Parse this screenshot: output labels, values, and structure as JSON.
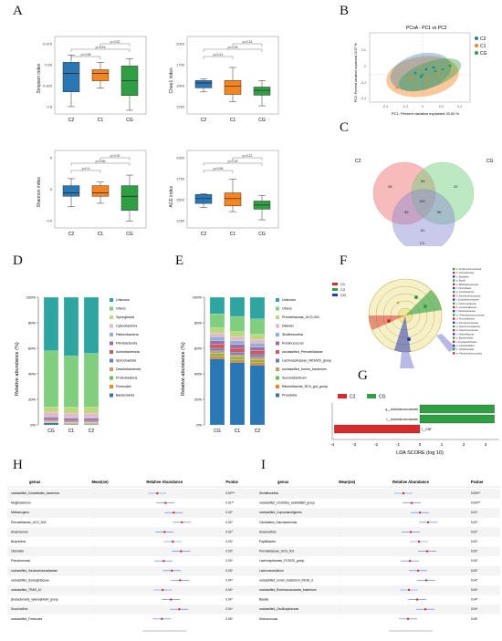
{
  "panel_labels": {
    "A": "A",
    "B": "B",
    "C": "C",
    "D": "D",
    "E": "E",
    "F": "F",
    "G": "G",
    "H": "H",
    "I": "I"
  },
  "colors": {
    "C2": "#2a77b5",
    "C1": "#f5861f",
    "CG": "#2ea043",
    "venn_C2": "#ef6b6b",
    "venn_CG": "#6ecf7a",
    "venn_C1": "#8a8ad6"
  },
  "panelA": {
    "groups": [
      "C2",
      "C1",
      "CG"
    ],
    "plots": [
      {
        "ylabel": "Simpson index",
        "yticks": [
          "0.875",
          "0.85",
          "0.825",
          "0.8"
        ],
        "ymin": 0.775,
        "ymax": 0.88,
        "boxes": [
          [
            0.785,
            0.805,
            0.83,
            0.845,
            0.855
          ],
          [
            0.81,
            0.82,
            0.83,
            0.835,
            0.845
          ],
          [
            0.78,
            0.8,
            0.82,
            0.84,
            0.85
          ]
        ],
        "pvals": [
          "p=0.98",
          "p=0.53",
          "p=0.52"
        ]
      },
      {
        "ylabel": "Chao1 index",
        "yticks": [
          "2000",
          "1750",
          "1500",
          "1250"
        ],
        "ymin": 1150,
        "ymax": 2100,
        "boxes": [
          [
            1420,
            1470,
            1530,
            1560,
            1580
          ],
          [
            1300,
            1390,
            1490,
            1560,
            1720
          ],
          [
            1250,
            1380,
            1440,
            1480,
            1560
          ]
        ],
        "pvals": [
          "p=0.41",
          "p=0.28",
          "p=0.24"
        ]
      },
      {
        "ylabel": "Shannon index",
        "yticks": [
          "6",
          "5",
          "4.5"
        ],
        "ymin": 4.0,
        "ymax": 6.2,
        "boxes": [
          [
            4.6,
            4.9,
            5.0,
            5.2,
            5.4
          ],
          [
            4.7,
            4.9,
            5.0,
            5.2,
            5.3
          ],
          [
            4.2,
            4.5,
            4.9,
            5.2,
            5.5
          ]
        ],
        "pvals": [
          "p=0.9",
          "p=0.86",
          "p=0.92"
        ]
      },
      {
        "ylabel": "ACE index",
        "yticks": [
          "2000",
          "1750",
          "1500",
          "1250"
        ],
        "ymin": 1150,
        "ymax": 2100,
        "boxes": [
          [
            1400,
            1450,
            1510,
            1560,
            1570
          ],
          [
            1350,
            1420,
            1510,
            1580,
            1750
          ],
          [
            1250,
            1380,
            1430,
            1480,
            1550
          ]
        ],
        "pvals": [
          "p=0.56",
          "p=0.28",
          "p=0.22"
        ]
      }
    ]
  },
  "panelB": {
    "title": "PCoA - PC1 vs PC2",
    "xlabel": "PC1: Percent variation explained 20.00 %",
    "ylabel": "PC2: Percent variation explained 10.57 %",
    "legend": [
      "C2",
      "C1",
      "CG"
    ],
    "xticks": [
      "-0.4",
      "-0.2",
      "0",
      "0.2",
      "0.4"
    ],
    "yticks": [
      "0.2",
      "0",
      "-0.2",
      "-0.4"
    ]
  },
  "panelC": {
    "labels": {
      "C2": "C2",
      "CG": "CG",
      "C1": "C1"
    },
    "counts": [
      "28",
      "59",
      "22",
      "120",
      "55",
      "56",
      "81"
    ]
  },
  "panelD": {
    "ylabel": "Relative abundance (%)",
    "yticks": [
      "100%",
      "80%",
      "60%",
      "40%",
      "20%",
      "0%"
    ],
    "categories": [
      "CG",
      "C1",
      "C2"
    ],
    "legend": [
      "Unknown",
      "Others",
      "Synergistota",
      "Cyanobacteria",
      "Patescibacteria",
      "Fibrobacterota",
      "Actinobacteriota",
      "Spirochaetota",
      "Desulfobacterota",
      "Proteobacteria",
      "Firmicutes",
      "Bacteroidota"
    ],
    "legend_colors": [
      "#2ea5a0",
      "#7fcf7f",
      "#b9d97a",
      "#e7b7c9",
      "#8db2d6",
      "#a46aa8",
      "#cc5c5c",
      "#6b7cc3",
      "#d29b63",
      "#6fbf4a",
      "#f5861f",
      "#2a77b5"
    ],
    "stacks": [
      [
        42,
        44,
        4,
        3,
        1,
        1.5,
        1,
        0.5,
        0.5,
        0.5,
        0.5,
        1.5
      ],
      [
        46,
        40,
        5,
        3,
        1,
        1.5,
        1,
        0.5,
        0.5,
        0.5,
        0.5,
        0.5
      ],
      [
        44,
        42,
        5,
        3,
        1,
        1.5,
        1,
        0.5,
        0.5,
        0.5,
        0.5,
        0.5
      ]
    ]
  },
  "panelE": {
    "ylabel": "Relative abundance (%)",
    "yticks": [
      "100%",
      "80%",
      "60%",
      "40%",
      "20%",
      "0%"
    ],
    "categories": [
      "CG",
      "C1",
      "C2"
    ],
    "legend": [
      "Unknown",
      "Others",
      "Prevotellaceae_UCG-001",
      "Dialister",
      "Shuttleworthia",
      "Ruminococcus",
      "unclassified_Prevotellaceae",
      "Lachnospiraceae_NK3A20_group",
      "unclassified_rumen_bacterium",
      "Succiniclasticum",
      "Rikenellaceae_RC9_gut_group",
      "Prevotella"
    ],
    "legend_colors": [
      "#2ea5a0",
      "#7fcf7f",
      "#b9d97a",
      "#e7b7c9",
      "#8db2d6",
      "#a46aa8",
      "#cc5c5c",
      "#6b7cc3",
      "#d29b63",
      "#6fbf4a",
      "#f5861f",
      "#2a77b5"
    ],
    "stacks": [
      [
        13,
        11,
        4,
        3,
        3,
        3,
        3,
        2,
        2,
        2,
        2,
        52
      ],
      [
        15,
        12,
        4,
        3,
        3,
        3,
        3,
        2,
        2,
        2,
        2,
        49
      ],
      [
        17,
        12,
        4,
        3,
        3,
        3,
        3,
        2,
        2,
        2,
        2,
        47
      ]
    ]
  },
  "panelF": {
    "legend": [
      "C1",
      "C2",
      "CG"
    ],
    "side_legend": [
      "a: Acidaminococcaceae",
      "b: Actinobacteria",
      "c: Bacillales",
      "d: Bacilli",
      "e: Bifidobacteriaceae",
      "f: Clostridiales",
      "g: Coriobacteriia",
      "h: Desulfovibrionaceae",
      "i: Erysipelotrichaceae",
      "j: Lachnospiraceae",
      "k: Lactobacillaceae",
      "l: Oscillospiraceae",
      "m: Peptostreptococcaceae",
      "n: Prevotellaceae",
      "o: Ruminococcaceae",
      "p: Selenomonadaceae",
      "q: Streptococcaceae",
      "r: Veillonellaceae",
      "s: Bacteroidales",
      "t: Erysipelotrichales",
      "u: Lactobacillales",
      "v: Oscillospirales",
      "w: Peptostreptococcales"
    ]
  },
  "panelG": {
    "legend": [
      "C2",
      "CG"
    ],
    "xlabel": "LDA SCORE (log 10)",
    "xticks": [
      "-4",
      "-3",
      "-2",
      "-1",
      "0",
      "1",
      "2",
      "3"
    ],
    "bars": [
      {
        "label": "g__Acidaminococcaceae",
        "value": 3.4,
        "group": "CG"
      },
      {
        "label": "f__Acidaminococcaceae",
        "value": 3.4,
        "group": "CG"
      },
      {
        "label": "f__DNF",
        "value": -3.9,
        "group": "C2"
      }
    ]
  },
  "panelH": {
    "headers": [
      "genus",
      "Mean(se)",
      "Relative Abundance",
      "Pvalue"
    ],
    "rows": [
      {
        "genus": "unclassified_Clostridiales_bacterium",
        "mean": "…",
        "p": "0.00***"
      },
      {
        "genus": "Mogibacterium",
        "mean": "…",
        "p": "0.01**"
      },
      {
        "genus": "Methanogens",
        "mean": "…",
        "p": "0.02*"
      },
      {
        "genus": "Prevotellaceae_UCG_004",
        "mean": "…",
        "p": "0.02*"
      },
      {
        "genus": "Anaerovorax",
        "mean": "…",
        "p": "0.02*"
      },
      {
        "genus": "Butyrivibrio",
        "mean": "…",
        "p": "0.03*"
      },
      {
        "genus": "Olsenella",
        "mean": "…",
        "p": "0.03*"
      },
      {
        "genus": "Pseudomonas",
        "mean": "…",
        "p": "0.03*"
      },
      {
        "genus": "unclassified_Saccharimonadaceae",
        "mean": "…",
        "p": "0.03*"
      },
      {
        "genus": "unclassified_Synergistaceae",
        "mean": "…",
        "p": "0.04*"
      },
      {
        "genus": "unclassified_TRAS_10",
        "mean": "…",
        "p": "0.04*"
      },
      {
        "genus": "[Eubacterium]_xylanophilum_group",
        "mean": "…",
        "p": "0.04*"
      },
      {
        "genus": "Succinivibrio",
        "mean": "…",
        "p": "0.04*"
      },
      {
        "genus": "unclassified_Firmicutes",
        "mean": "…",
        "p": "0.05*"
      }
    ]
  },
  "panelI": {
    "headers": [
      "genus",
      "Mean(se)",
      "Relative Abundance",
      "Pvalue"
    ],
    "rows": [
      {
        "genus": "Shuttleworthia",
        "mean": "…",
        "p": "0.000**"
      },
      {
        "genus": "unclassified_Clostridia_vadinBB60_group",
        "mean": "…",
        "p": "0.000**"
      },
      {
        "genus": "unclassified_Coprostanoligenes",
        "mean": "…",
        "p": "0.01*"
      },
      {
        "genus": "Candidatus_Saccharimonas",
        "mean": "…",
        "p": "0.02*"
      },
      {
        "genus": "Anaerovibrio",
        "mean": "…",
        "p": "0.02*"
      },
      {
        "genus": "Papillibacter",
        "mean": "…",
        "p": "0.02*"
      },
      {
        "genus": "Prevotellaceae_UCG_001",
        "mean": "…",
        "p": "0.03*"
      },
      {
        "genus": "Lachnospiraceae_FCS020_group",
        "mean": "…",
        "p": "0.03*"
      },
      {
        "genus": "Lachnoclostridium",
        "mean": "…",
        "p": "0.03*"
      },
      {
        "genus": "unclassified_rumen_bacterium_NK3A_3",
        "mean": "…",
        "p": "0.04*"
      },
      {
        "genus": "unclassified_Ruminococcaceae_bacterium",
        "mean": "…",
        "p": "0.04*"
      },
      {
        "genus": "Blautia",
        "mean": "…",
        "p": "0.04*"
      },
      {
        "genus": "unclassified_Oscillospiraceae",
        "mean": "…",
        "p": "0.04*"
      },
      {
        "genus": "Selenomonas",
        "mean": "…",
        "p": "0.05*"
      }
    ]
  }
}
